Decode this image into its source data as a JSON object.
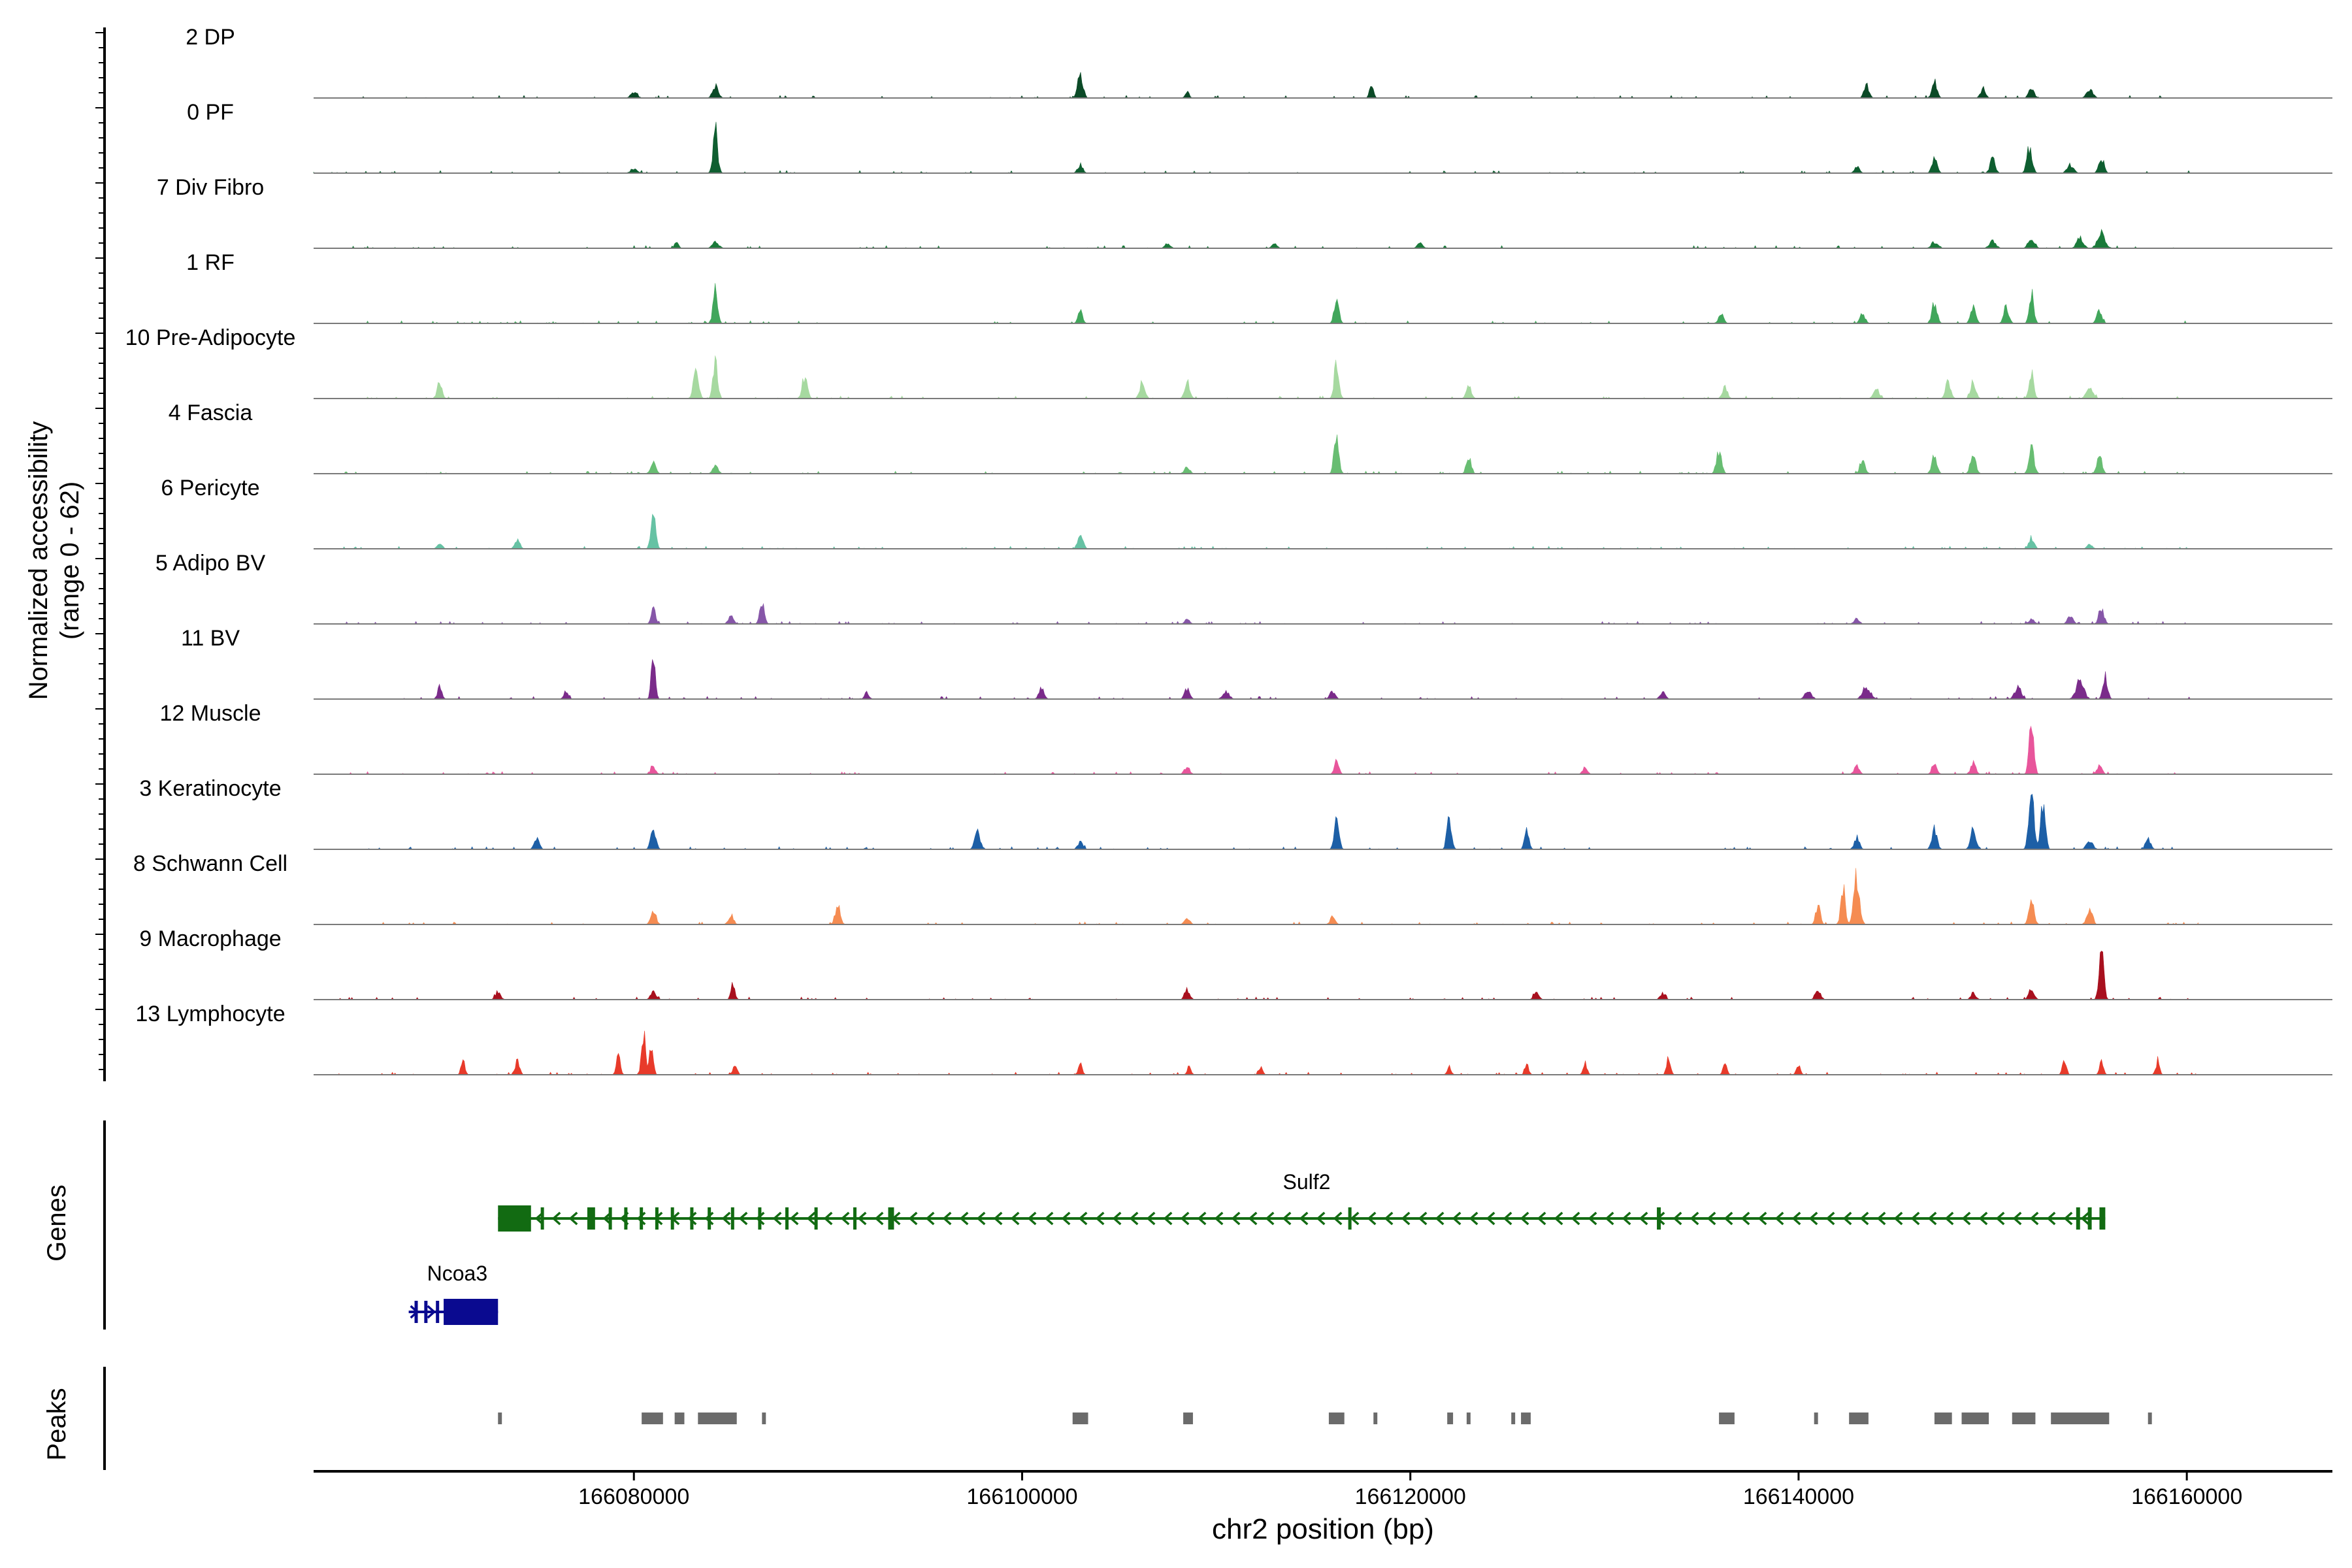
{
  "chart_data": {
    "type": "area",
    "ylabel": "Normalized accessibility",
    "ylabel_range": "(range 0 - 62)",
    "xlabel": "chr2 position (bp)",
    "ylim": [
      0,
      62
    ],
    "xlim": [
      166063500,
      166167500
    ],
    "x_ticks": [
      166080000,
      166100000,
      166120000,
      166140000,
      166160000
    ],
    "x_tick_labels": [
      "166080000",
      "166100000",
      "166120000",
      "166140000",
      "166160000"
    ],
    "panel_labels": {
      "genes": "Genes",
      "peaks": "Peaks"
    },
    "tracks": [
      {
        "name": "2 DP",
        "color": "#0b4a27",
        "start": 166063500,
        "end": 166160600,
        "peaks": [
          [
            166084200,
            12,
            350
          ],
          [
            166103000,
            26,
            300
          ],
          [
            166118000,
            13,
            200
          ],
          [
            166147000,
            18,
            300
          ],
          [
            166149500,
            9,
            300
          ],
          [
            166152000,
            12,
            300
          ],
          [
            166155000,
            9,
            400
          ],
          [
            166143500,
            14,
            300
          ],
          [
            166108500,
            8,
            200
          ],
          [
            166080000,
            6,
            400
          ]
        ]
      },
      {
        "name": "0 PF",
        "color": "#0e5e30",
        "start": 166063500,
        "end": 166160600,
        "peaks": [
          [
            166084200,
            47,
            250
          ],
          [
            166103000,
            9,
            300
          ],
          [
            166147000,
            18,
            300
          ],
          [
            166150000,
            16,
            300
          ],
          [
            166151900,
            29,
            300
          ],
          [
            166155600,
            17,
            300
          ],
          [
            166154000,
            9,
            400
          ],
          [
            166143000,
            7,
            300
          ],
          [
            166080000,
            5,
            400
          ]
        ]
      },
      {
        "name": "7 Div Fibro",
        "color": "#1a7a3a",
        "start": 166064800,
        "end": 166160600,
        "peaks": [
          [
            166082200,
            8,
            200
          ],
          [
            166084200,
            7,
            400
          ],
          [
            166155600,
            16,
            500
          ],
          [
            166152000,
            11,
            400
          ],
          [
            166154500,
            12,
            400
          ],
          [
            166150000,
            8,
            400
          ],
          [
            166147000,
            7,
            400
          ],
          [
            166107500,
            6,
            300
          ],
          [
            166120500,
            6,
            300
          ],
          [
            166113000,
            5,
            300
          ]
        ]
      },
      {
        "name": "1 RF",
        "color": "#41a65b",
        "start": 166064800,
        "end": 166160600,
        "peaks": [
          [
            166084200,
            36,
            250
          ],
          [
            166103000,
            14,
            250
          ],
          [
            166116200,
            30,
            250
          ],
          [
            166152000,
            31,
            250
          ],
          [
            166147000,
            22,
            300
          ],
          [
            166149000,
            19,
            300
          ],
          [
            166150700,
            19,
            300
          ],
          [
            166155500,
            14,
            300
          ],
          [
            166136000,
            10,
            300
          ],
          [
            166143300,
            11,
            300
          ]
        ]
      },
      {
        "name": "10 Pre-Adipocyte",
        "color": "#a6d9a0",
        "start": 166064800,
        "end": 166160600,
        "peaks": [
          [
            166070000,
            20,
            250
          ],
          [
            166084200,
            43,
            250
          ],
          [
            166083200,
            30,
            300
          ],
          [
            166088800,
            23,
            300
          ],
          [
            166116200,
            43,
            250
          ],
          [
            166106200,
            19,
            300
          ],
          [
            166108500,
            17,
            300
          ],
          [
            166152000,
            28,
            250
          ],
          [
            166147700,
            18,
            300
          ],
          [
            166149000,
            17,
            300
          ],
          [
            166144000,
            14,
            300
          ],
          [
            166136200,
            13,
            300
          ],
          [
            166123000,
            14,
            300
          ],
          [
            166155000,
            12,
            400
          ]
        ]
      },
      {
        "name": "4 Fascia",
        "color": "#68bd72",
        "start": 166064800,
        "end": 166160600,
        "peaks": [
          [
            166116200,
            46,
            250
          ],
          [
            166081000,
            12,
            300
          ],
          [
            166084200,
            10,
            300
          ],
          [
            166123000,
            19,
            250
          ],
          [
            166135900,
            26,
            300
          ],
          [
            166143300,
            16,
            300
          ],
          [
            166147000,
            18,
            300
          ],
          [
            166149000,
            22,
            300
          ],
          [
            166152000,
            28,
            300
          ],
          [
            166155500,
            17,
            300
          ],
          [
            166108500,
            8,
            300
          ]
        ]
      },
      {
        "name": "6 Pericyte",
        "color": "#66c2a4",
        "start": 166064800,
        "end": 166160600,
        "peaks": [
          [
            166081000,
            41,
            250
          ],
          [
            166103000,
            16,
            300
          ],
          [
            166070000,
            6,
            300
          ],
          [
            166074000,
            9,
            300
          ],
          [
            166152000,
            12,
            300
          ],
          [
            166155000,
            5,
            300
          ]
        ]
      },
      {
        "name": "5 Adipo BV",
        "color": "#8656a8",
        "start": 166064800,
        "end": 166160600,
        "peaks": [
          [
            166081000,
            17,
            250
          ],
          [
            166086600,
            22,
            250
          ],
          [
            166085000,
            8,
            300
          ],
          [
            166155600,
            16,
            300
          ],
          [
            166154000,
            9,
            300
          ],
          [
            166143000,
            6,
            300
          ],
          [
            166152000,
            6,
            300
          ],
          [
            166108500,
            5,
            300
          ]
        ]
      },
      {
        "name": "11 BV",
        "color": "#7a2b8a",
        "start": 166064800,
        "end": 166160600,
        "peaks": [
          [
            166081000,
            51,
            200
          ],
          [
            166070000,
            13,
            250
          ],
          [
            166076500,
            8,
            250
          ],
          [
            166092000,
            7,
            250
          ],
          [
            166154500,
            20,
            500
          ],
          [
            166155800,
            26,
            250
          ],
          [
            166110500,
            9,
            400
          ],
          [
            166108500,
            11,
            300
          ],
          [
            166116000,
            9,
            300
          ],
          [
            166143500,
            14,
            500
          ],
          [
            166140500,
            9,
            400
          ],
          [
            166151300,
            13,
            400
          ],
          [
            166101000,
            12,
            300
          ],
          [
            166133000,
            8,
            300
          ]
        ]
      },
      {
        "name": "12 Muscle",
        "color": "#e8559b",
        "start": 166064800,
        "end": 166160600,
        "peaks": [
          [
            166152000,
            61,
            250
          ],
          [
            166116200,
            14,
            250
          ],
          [
            166081000,
            8,
            300
          ],
          [
            166147000,
            12,
            300
          ],
          [
            166149000,
            12,
            300
          ],
          [
            166155500,
            9,
            300
          ],
          [
            166143000,
            10,
            300
          ],
          [
            166129000,
            8,
            250
          ],
          [
            166108500,
            8,
            300
          ]
        ]
      },
      {
        "name": "3 Keratinocyte",
        "color": "#1d5fa6",
        "start": 166064800,
        "end": 166160600,
        "peaks": [
          [
            166152000,
            62,
            300
          ],
          [
            166152600,
            52,
            250
          ],
          [
            166116200,
            39,
            250
          ],
          [
            166122000,
            36,
            250
          ],
          [
            166126000,
            19,
            250
          ],
          [
            166081000,
            21,
            300
          ],
          [
            166097700,
            20,
            300
          ],
          [
            166147000,
            22,
            300
          ],
          [
            166149000,
            23,
            300
          ],
          [
            166143000,
            13,
            300
          ],
          [
            166075000,
            11,
            300
          ],
          [
            166158000,
            11,
            300
          ],
          [
            166155000,
            9,
            400
          ],
          [
            166103000,
            8,
            300
          ]
        ]
      },
      {
        "name": "8 Schwann Cell",
        "color": "#f58c52",
        "start": 166064800,
        "end": 166160600,
        "peaks": [
          [
            166143000,
            52,
            350
          ],
          [
            166142300,
            38,
            250
          ],
          [
            166141000,
            22,
            250
          ],
          [
            166081000,
            17,
            300
          ],
          [
            166090500,
            21,
            300
          ],
          [
            166152000,
            24,
            300
          ],
          [
            166155000,
            16,
            300
          ],
          [
            166085000,
            10,
            300
          ],
          [
            166116000,
            8,
            300
          ],
          [
            166108500,
            7,
            300
          ]
        ]
      },
      {
        "name": "9 Macrophage",
        "color": "#a8101e",
        "start": 166064800,
        "end": 166160600,
        "peaks": [
          [
            166155600,
            53,
            250
          ],
          [
            166085100,
            20,
            200
          ],
          [
            166081000,
            9,
            300
          ],
          [
            166108500,
            11,
            300
          ],
          [
            166141000,
            11,
            300
          ],
          [
            166152000,
            12,
            300
          ],
          [
            166149000,
            7,
            300
          ],
          [
            166126500,
            9,
            300
          ],
          [
            166133000,
            7,
            300
          ],
          [
            166073000,
            8,
            300
          ]
        ]
      },
      {
        "name": "13 Lymphocyte",
        "color": "#e83a2a",
        "start": 166064800,
        "end": 166160600,
        "peaks": [
          [
            166080500,
            48,
            200
          ],
          [
            166080900,
            30,
            200
          ],
          [
            166079200,
            22,
            200
          ],
          [
            166074000,
            18,
            200
          ],
          [
            166071200,
            14,
            200
          ],
          [
            166085200,
            12,
            200
          ],
          [
            166155600,
            13,
            200
          ],
          [
            166153700,
            16,
            200
          ],
          [
            166158500,
            14,
            200
          ],
          [
            166133300,
            18,
            200
          ],
          [
            166129000,
            14,
            200
          ],
          [
            166136200,
            13,
            200
          ],
          [
            166140000,
            12,
            200
          ],
          [
            166108600,
            9,
            200
          ],
          [
            166103000,
            11,
            200
          ],
          [
            166112300,
            8,
            200
          ],
          [
            166122000,
            10,
            200
          ],
          [
            166126000,
            12,
            200
          ]
        ]
      }
    ],
    "genes": [
      {
        "name": "Sulf2",
        "strand": "-",
        "color": "#126b12",
        "start": 166073000,
        "end": 166155800,
        "exons": [
          [
            166073000,
            166074700
          ],
          [
            166075200,
            166075300
          ],
          [
            166077600,
            166078000
          ],
          [
            166078700,
            166078800
          ],
          [
            166079500,
            166079600
          ],
          [
            166080300,
            166080400
          ],
          [
            166081100,
            166081200
          ],
          [
            166081900,
            166082000
          ],
          [
            166082900,
            166083000
          ],
          [
            166083800,
            166083900
          ],
          [
            166085000,
            166085100
          ],
          [
            166086400,
            166086500
          ],
          [
            166087800,
            166087900
          ],
          [
            166089300,
            166089400
          ],
          [
            166091300,
            166091400
          ],
          [
            166093100,
            166093400
          ],
          [
            166116800,
            166116900
          ],
          [
            166132700,
            166132900
          ],
          [
            166154300,
            166154500
          ],
          [
            166154900,
            166155100
          ],
          [
            166155500,
            166155800
          ]
        ]
      },
      {
        "name": "Ncoa3",
        "strand": "+",
        "color": "#0a0a90",
        "start": 166068400,
        "end": 166073000,
        "exons": [
          [
            166068700,
            166068800
          ],
          [
            166069200,
            166069300
          ],
          [
            166069800,
            166069900
          ],
          [
            166070200,
            166073000
          ]
        ]
      }
    ],
    "peaks_regions": [
      [
        166073000,
        166073200
      ],
      [
        166080400,
        166081500
      ],
      [
        166082100,
        166082600
      ],
      [
        166083300,
        166085300
      ],
      [
        166086600,
        166086800
      ],
      [
        166102600,
        166103400
      ],
      [
        166108300,
        166108800
      ],
      [
        166115800,
        166116600
      ],
      [
        166118100,
        166118300
      ],
      [
        166121900,
        166122200
      ],
      [
        166122900,
        166123100
      ],
      [
        166125200,
        166125400
      ],
      [
        166125700,
        166126200
      ],
      [
        166135900,
        166136700
      ],
      [
        166140800,
        166141000
      ],
      [
        166142600,
        166143600
      ],
      [
        166147000,
        166147900
      ],
      [
        166148400,
        166149800
      ],
      [
        166151000,
        166152200
      ],
      [
        166153000,
        166156000
      ],
      [
        166158000,
        166158200
      ]
    ]
  }
}
